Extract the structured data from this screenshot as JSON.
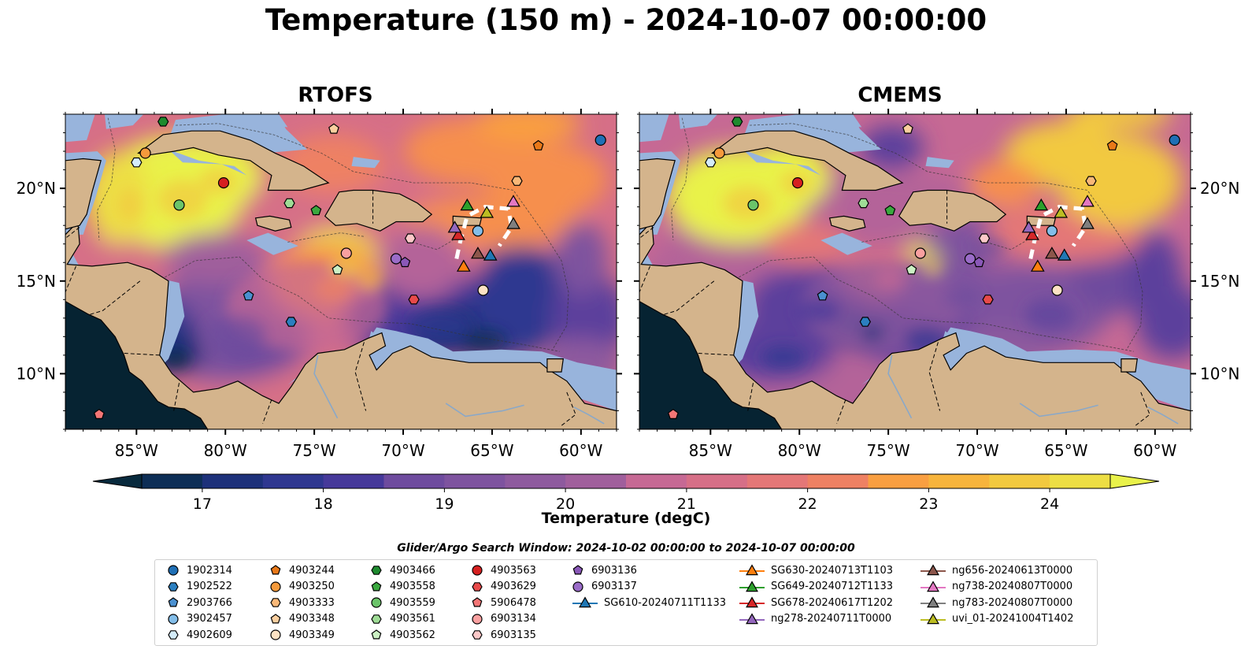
{
  "title": "Temperature (150 m) - 2024-10-07 00:00:00",
  "panels": [
    {
      "title": "RTOFS"
    },
    {
      "title": "CMEMS"
    }
  ],
  "axes": {
    "lon_ticks": [
      {
        "lon": -85,
        "label": "85°W"
      },
      {
        "lon": -80,
        "label": "80°W"
      },
      {
        "lon": -75,
        "label": "75°W"
      },
      {
        "lon": -70,
        "label": "70°W"
      },
      {
        "lon": -65,
        "label": "65°W"
      },
      {
        "lon": -60,
        "label": "60°W"
      }
    ],
    "lat_ticks": [
      {
        "lat": 20,
        "label": "20°N"
      },
      {
        "lat": 15,
        "label": "15°N"
      },
      {
        "lat": 10,
        "label": "10°N"
      }
    ],
    "lon_range": [
      -89,
      -58
    ],
    "lat_range": [
      7,
      24
    ]
  },
  "colorbar": {
    "label": "Temperature (degC)",
    "min": 16.5,
    "max": 24.5,
    "ticks": [
      17,
      18,
      19,
      20,
      21,
      22,
      23,
      24
    ],
    "extend": "both",
    "colormap": "thermal",
    "colors": [
      "#082a3d",
      "#0d2e56",
      "#1d317a",
      "#2f3790",
      "#46399a",
      "#5c419c",
      "#6e4b9e",
      "#7e539f",
      "#8e5a9e",
      "#a05f9c",
      "#b46499",
      "#c66994",
      "#d66f87",
      "#e47777",
      "#ee8163",
      "#f68f4e",
      "#f99f41",
      "#f7b43c",
      "#f2c93f",
      "#edde44",
      "#e9f24a"
    ]
  },
  "map_colors": {
    "land": "#d4b48c",
    "shelf": "#98b4dc",
    "pacific": "#062332",
    "coast": "#000000"
  },
  "search_window": "Glider/Argo Search Window: 2024-10-02 00:00:00 to 2024-10-07 00:00:00",
  "legend": {
    "argo": [
      {
        "id": "1902314",
        "marker": "circle",
        "color": "#1f6fb5"
      },
      {
        "id": "1902522",
        "marker": "hexagon",
        "color": "#2b7fc0"
      },
      {
        "id": "2903766",
        "marker": "pentagon",
        "color": "#4a90d0"
      },
      {
        "id": "3902457",
        "marker": "circle",
        "color": "#83bde8"
      },
      {
        "id": "4902609",
        "marker": "hexagon",
        "color": "#d4ecfa"
      },
      {
        "id": "4903244",
        "marker": "pentagon",
        "color": "#e87818"
      },
      {
        "id": "4903250",
        "marker": "circle",
        "color": "#f59a3c"
      },
      {
        "id": "4903333",
        "marker": "hexagon",
        "color": "#f9b878"
      },
      {
        "id": "4903348",
        "marker": "pentagon",
        "color": "#fbcf9f"
      },
      {
        "id": "4903349",
        "marker": "circle",
        "color": "#fde2c4"
      },
      {
        "id": "4903466",
        "marker": "hexagon",
        "color": "#1e8a2e"
      },
      {
        "id": "4903558",
        "marker": "pentagon",
        "color": "#3aa83f"
      },
      {
        "id": "4903559",
        "marker": "circle",
        "color": "#6bc46a"
      },
      {
        "id": "4903561",
        "marker": "hexagon",
        "color": "#9fdc96"
      },
      {
        "id": "4903562",
        "marker": "pentagon",
        "color": "#ccf0c4"
      },
      {
        "id": "4903563",
        "marker": "circle",
        "color": "#d62020"
      },
      {
        "id": "4903629",
        "marker": "hexagon",
        "color": "#e84a4a"
      },
      {
        "id": "5906478",
        "marker": "pentagon",
        "color": "#f47676"
      },
      {
        "id": "6903134",
        "marker": "circle",
        "color": "#f9a0a0"
      },
      {
        "id": "6903135",
        "marker": "hexagon",
        "color": "#fcc8c8"
      },
      {
        "id": "6903136",
        "marker": "pentagon",
        "color": "#8a58b8"
      },
      {
        "id": "6903137",
        "marker": "circle",
        "color": "#9a6cc8"
      }
    ],
    "gliders": [
      {
        "id": "SG610-20240711T1133",
        "color": "#1f77b4"
      },
      {
        "id": "SG630-20240713T1103",
        "color": "#ff7f0e"
      },
      {
        "id": "SG649-20240712T1133",
        "color": "#2ca02c"
      },
      {
        "id": "SG678-20240617T1202",
        "color": "#d62728"
      },
      {
        "id": "ng278-20240711T0000",
        "color": "#9467bd"
      },
      {
        "id": "ng656-20240613T0000",
        "color": "#8c564b"
      },
      {
        "id": "ng738-20240807T0000",
        "color": "#e377c2"
      },
      {
        "id": "ng783-20240807T0000",
        "color": "#7f7f7f"
      },
      {
        "id": "uvi_01-20241004T1402",
        "color": "#bcbd22"
      }
    ]
  },
  "floats": [
    {
      "id": "1902314",
      "lon": -58.9,
      "lat": 22.6
    },
    {
      "id": "1902522",
      "lon": -76.3,
      "lat": 12.8
    },
    {
      "id": "2903766",
      "lon": -78.7,
      "lat": 14.2
    },
    {
      "id": "3902457",
      "lon": -65.8,
      "lat": 17.7
    },
    {
      "id": "4902609",
      "lon": -85.0,
      "lat": 21.4
    },
    {
      "id": "4903244",
      "lon": -62.4,
      "lat": 22.3
    },
    {
      "id": "4903250",
      "lon": -84.5,
      "lat": 21.9
    },
    {
      "id": "4903333",
      "lon": -63.6,
      "lat": 20.4
    },
    {
      "id": "4903348",
      "lon": -73.9,
      "lat": 23.2
    },
    {
      "id": "4903349",
      "lon": -65.5,
      "lat": 14.5
    },
    {
      "id": "4903466",
      "lon": -83.5,
      "lat": 23.6
    },
    {
      "id": "4903558",
      "lon": -74.9,
      "lat": 18.8
    },
    {
      "id": "4903559",
      "lon": -82.6,
      "lat": 19.1
    },
    {
      "id": "4903561",
      "lon": -76.4,
      "lat": 19.2
    },
    {
      "id": "4903562",
      "lon": -73.7,
      "lat": 15.6
    },
    {
      "id": "4903563",
      "lon": -80.1,
      "lat": 20.3
    },
    {
      "id": "4903629",
      "lon": -69.4,
      "lat": 14.0
    },
    {
      "id": "5906478",
      "lon": -87.1,
      "lat": 7.8
    },
    {
      "id": "6903134",
      "lon": -73.2,
      "lat": 16.5
    },
    {
      "id": "6903135",
      "lon": -69.6,
      "lat": 17.3
    },
    {
      "id": "6903136",
      "lon": -69.9,
      "lat": 16.0
    },
    {
      "id": "6903137",
      "lon": -70.4,
      "lat": 16.2
    }
  ],
  "glider_positions": [
    {
      "id": "SG610-20240711T1133",
      "lon": -65.1,
      "lat": 16.4
    },
    {
      "id": "SG630-20240713T1103",
      "lon": -66.6,
      "lat": 15.8
    },
    {
      "id": "SG649-20240712T1133",
      "lon": -66.4,
      "lat": 19.1
    },
    {
      "id": "SG678-20240617T1202",
      "lon": -66.9,
      "lat": 17.5
    },
    {
      "id": "ng278-20240711T0000",
      "lon": -67.1,
      "lat": 17.9
    },
    {
      "id": "ng656-20240613T0000",
      "lon": -65.8,
      "lat": 16.5
    },
    {
      "id": "ng738-20240807T0000",
      "lon": -63.8,
      "lat": 19.3
    },
    {
      "id": "ng783-20240807T0000",
      "lon": -63.8,
      "lat": 18.1
    },
    {
      "id": "uvi_01-20241004T1402",
      "lon": -65.3,
      "lat": 18.7
    }
  ]
}
